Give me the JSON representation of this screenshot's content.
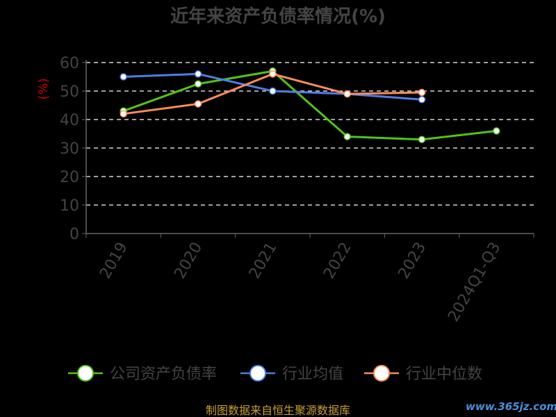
{
  "chart_data": {
    "type": "line",
    "title": "近年来资产负债率情况(%)",
    "ylabel": "(%)",
    "xlabel": "",
    "ylim": [
      0,
      60
    ],
    "yticks": [
      0,
      10,
      20,
      30,
      40,
      50,
      60
    ],
    "categories": [
      "2019",
      "2020",
      "2021",
      "2022",
      "2023",
      "2024Q1-Q3"
    ],
    "grid": true,
    "legend_position": "bottom",
    "series": [
      {
        "name": "公司资产负债率",
        "color": "#52c41a",
        "values": [
          43,
          52.5,
          57,
          34,
          33,
          36
        ]
      },
      {
        "name": "行业均值",
        "color": "#4e7de8",
        "values": [
          55,
          56,
          50,
          49,
          47,
          null
        ]
      },
      {
        "name": "行业中位数",
        "color": "#ff8c5a",
        "values": [
          42,
          45.5,
          56,
          49,
          49.5,
          null
        ]
      }
    ]
  },
  "footer": {
    "source": "制图数据来自恒生聚源数据库"
  },
  "watermark": {
    "text": "www.365jz.com"
  },
  "colors": {
    "background": "#000000",
    "axis": "#666666",
    "grid": "#ffffff",
    "text": "#444444",
    "ylabel": "#cc0000",
    "source": "#c8a030"
  }
}
